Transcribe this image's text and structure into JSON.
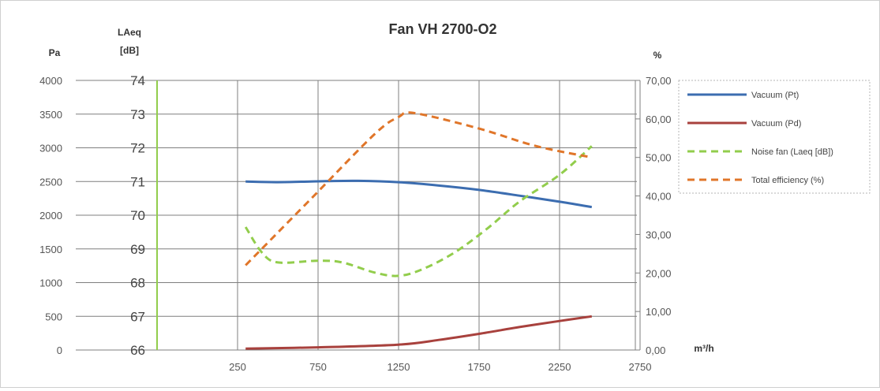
{
  "chart_data": {
    "type": "line",
    "title": "Fan VH 2700-O2",
    "x_unit": "m³/h",
    "x_ticks": [
      "250",
      "750",
      "1250",
      "1750",
      "2250",
      "2750"
    ],
    "xlim": [
      250,
      2750
    ],
    "axes": {
      "pressure": {
        "label": "Pa",
        "ticks": [
          "0",
          "500",
          "1000",
          "1500",
          "2000",
          "2500",
          "3000",
          "3500",
          "4000"
        ],
        "range": [
          0,
          4000
        ]
      },
      "noise": {
        "label_line1": "LAeq",
        "label_line2": "[dB]",
        "ticks": [
          "66",
          "67",
          "68",
          "69",
          "70",
          "71",
          "72",
          "73",
          "74"
        ],
        "range": [
          66,
          74
        ]
      },
      "efficiency": {
        "label": "%",
        "ticks": [
          "0,00",
          "10,00",
          "20,00",
          "30,00",
          "40,00",
          "50,00",
          "60,00",
          "70,00"
        ],
        "range": [
          0,
          70
        ]
      }
    },
    "grid": true,
    "legend_position": "right",
    "series": [
      {
        "name": "Vacuum (Pt)",
        "axis": "pressure",
        "color": "#3c6db0",
        "dashed": false,
        "x": [
          300,
          500,
          800,
          1000,
          1250,
          1500,
          1750,
          2000,
          2250,
          2450
        ],
        "y": [
          2500,
          2490,
          2505,
          2510,
          2490,
          2440,
          2375,
          2290,
          2200,
          2120
        ]
      },
      {
        "name": "Vacuum (Pd)",
        "axis": "pressure",
        "color": "#a8413d",
        "dashed": false,
        "x": [
          300,
          750,
          1250,
          1500,
          1750,
          2000,
          2250,
          2450
        ],
        "y": [
          20,
          40,
          80,
          150,
          240,
          340,
          430,
          500
        ]
      },
      {
        "name": "Noise fan (Laeq [dB])",
        "axis": "noise",
        "color": "#92cd4c",
        "dashed": true,
        "x": [
          300,
          400,
          500,
          750,
          900,
          1100,
          1250,
          1400,
          1600,
          1800,
          2000,
          2250,
          2450
        ],
        "y": [
          69.65,
          68.9,
          68.6,
          68.65,
          68.6,
          68.3,
          68.2,
          68.4,
          68.9,
          69.6,
          70.4,
          71.2,
          72.05
        ]
      },
      {
        "name": "Total efficiency (%)",
        "axis": "efficiency",
        "color": "#e0762a",
        "dashed": true,
        "x": [
          300,
          700,
          1100,
          1250,
          1350,
          1750,
          2100,
          2450
        ],
        "y": [
          22,
          39,
          56,
          60.5,
          61.5,
          57.5,
          53,
          50
        ]
      }
    ]
  }
}
